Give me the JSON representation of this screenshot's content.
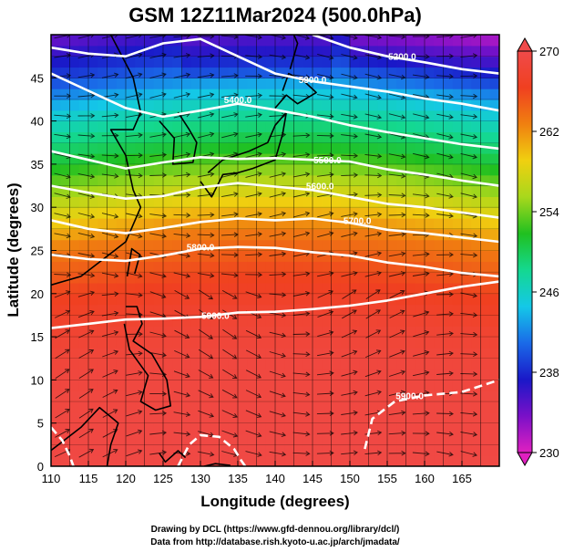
{
  "chart_data": {
    "type": "heatmap",
    "title": "GSM 12Z11Mar2024 (500.0hPa)",
    "xlabel": "Longitude (degrees)",
    "ylabel": "Latitude  (degrees)",
    "xlim": [
      110,
      170
    ],
    "ylim": [
      0,
      50
    ],
    "x_ticks": [
      110,
      115,
      120,
      125,
      130,
      135,
      140,
      145,
      150,
      155,
      160,
      165
    ],
    "y_ticks": [
      0,
      5,
      10,
      15,
      20,
      25,
      30,
      35,
      40,
      45
    ],
    "colorbar": {
      "min": 230,
      "max": 270,
      "tick_labels": [
        "230",
        "238",
        "246",
        "254",
        "262",
        "270"
      ],
      "tick_values": [
        230,
        238,
        246,
        254,
        262,
        270
      ],
      "colors": [
        "#e020c0",
        "#7a10c8",
        "#1a18c8",
        "#1a6ae8",
        "#14c8e8",
        "#14d890",
        "#20c020",
        "#a8d81c",
        "#f0d010",
        "#f08010",
        "#f04020",
        "#f04a4a"
      ]
    },
    "temperature_field_lat_profile": [
      {
        "lat": 0,
        "value": 269.5
      },
      {
        "lat": 10,
        "value": 269
      },
      {
        "lat": 15,
        "value": 268
      },
      {
        "lat": 20,
        "value": 266
      },
      {
        "lat": 25,
        "value": 263
      },
      {
        "lat": 30,
        "value": 257
      },
      {
        "lat": 35,
        "value": 251
      },
      {
        "lat": 40,
        "value": 246
      },
      {
        "lat": 45,
        "value": 239
      },
      {
        "lat": 50,
        "value": 234
      }
    ],
    "height_contours": [
      {
        "label": "5200.0",
        "value": 5200,
        "path": [
          [
            145,
            50
          ],
          [
            150,
            48.5
          ],
          [
            155,
            47.5
          ],
          [
            160,
            46.8
          ],
          [
            165,
            46
          ],
          [
            170,
            45.5
          ]
        ]
      },
      {
        "label": "5300.0",
        "value": 5300,
        "path": [
          [
            110,
            48.5
          ],
          [
            115,
            47.8
          ],
          [
            120,
            47.5
          ],
          [
            125,
            49
          ],
          [
            130,
            49.5
          ],
          [
            135,
            47.5
          ],
          [
            140,
            45.5
          ],
          [
            145,
            44.6
          ],
          [
            150,
            44
          ],
          [
            155,
            43.4
          ],
          [
            160,
            42.6
          ],
          [
            165,
            42
          ],
          [
            170,
            41.2
          ]
        ]
      },
      {
        "label": "5400.0",
        "value": 5400,
        "path": [
          [
            110,
            45.5
          ],
          [
            115,
            43.5
          ],
          [
            120,
            41.5
          ],
          [
            125,
            40.5
          ],
          [
            130,
            41.2
          ],
          [
            135,
            42
          ],
          [
            140,
            41.3
          ],
          [
            145,
            40.5
          ],
          [
            150,
            39.5
          ],
          [
            155,
            38.7
          ],
          [
            160,
            38
          ],
          [
            165,
            37.3
          ],
          [
            170,
            36.8
          ]
        ]
      },
      {
        "label": "5500.0",
        "value": 5500,
        "path": [
          [
            110,
            36.5
          ],
          [
            115,
            35.5
          ],
          [
            120,
            34.5
          ],
          [
            125,
            35.2
          ],
          [
            130,
            35.8
          ],
          [
            135,
            35.6
          ],
          [
            140,
            35.7
          ],
          [
            145,
            35.5
          ],
          [
            150,
            35.3
          ],
          [
            155,
            34.4
          ],
          [
            160,
            33.8
          ],
          [
            165,
            33.1
          ],
          [
            170,
            32.5
          ]
        ]
      },
      {
        "label": "5600.0",
        "value": 5600,
        "path": [
          [
            110,
            32.5
          ],
          [
            115,
            31.7
          ],
          [
            120,
            31
          ],
          [
            125,
            31.3
          ],
          [
            130,
            32.3
          ],
          [
            135,
            32.8
          ],
          [
            140,
            32.4
          ],
          [
            145,
            32
          ],
          [
            150,
            31.2
          ],
          [
            155,
            30.4
          ],
          [
            160,
            30
          ],
          [
            165,
            29.4
          ],
          [
            170,
            28.8
          ]
        ]
      },
      {
        "label": "5700.0",
        "value": 5700,
        "path": [
          [
            110,
            28.5
          ],
          [
            115,
            27.5
          ],
          [
            120,
            27
          ],
          [
            125,
            27.6
          ],
          [
            130,
            28.3
          ],
          [
            135,
            28.7
          ],
          [
            140,
            28.5
          ],
          [
            145,
            28.7
          ],
          [
            150,
            28.2
          ],
          [
            155,
            27.4
          ],
          [
            160,
            27
          ],
          [
            165,
            26.5
          ],
          [
            170,
            26
          ]
        ]
      },
      {
        "label": "5800.0",
        "value": 5800,
        "path": [
          [
            110,
            24.5
          ],
          [
            115,
            24
          ],
          [
            120,
            23.8
          ],
          [
            125,
            24.4
          ],
          [
            130,
            25.2
          ],
          [
            135,
            25.4
          ],
          [
            140,
            25.3
          ],
          [
            145,
            24.8
          ],
          [
            150,
            24.4
          ],
          [
            155,
            23.6
          ],
          [
            160,
            23.1
          ],
          [
            165,
            22.4
          ],
          [
            170,
            22
          ]
        ]
      },
      {
        "label": "5900.0",
        "value": 5900,
        "path": [
          [
            110,
            16
          ],
          [
            115,
            16.5
          ],
          [
            120,
            17
          ],
          [
            125,
            17.1
          ],
          [
            130,
            17.3
          ],
          [
            135,
            17.8
          ],
          [
            140,
            17.9
          ],
          [
            145,
            18.2
          ],
          [
            150,
            18.6
          ],
          [
            155,
            19.2
          ],
          [
            160,
            20
          ],
          [
            165,
            20.8
          ],
          [
            170,
            21.4
          ]
        ]
      },
      {
        "label": "5900.0",
        "value": 5900,
        "path": [
          [
            152,
            2
          ],
          [
            153,
            5.5
          ],
          [
            156,
            7.5
          ],
          [
            160,
            8.2
          ],
          [
            165,
            8.6
          ],
          [
            170,
            10
          ]
        ]
      },
      {
        "label": "",
        "value": 5900,
        "path": [
          [
            110,
            4.5
          ],
          [
            111.5,
            3
          ],
          [
            112.5,
            1.2
          ],
          [
            113,
            0
          ]
        ]
      },
      {
        "label": "",
        "value": 5900,
        "path": [
          [
            127,
            0
          ],
          [
            128.5,
            2.5
          ],
          [
            130,
            3.6
          ],
          [
            132.5,
            3.4
          ],
          [
            134.5,
            2
          ],
          [
            135.5,
            0.6
          ],
          [
            136,
            0
          ]
        ]
      }
    ],
    "contour_label_positions": [
      {
        "text": "5200.0",
        "lon": 157,
        "lat": 47.5
      },
      {
        "text": "5300.0",
        "lon": 145,
        "lat": 44.8
      },
      {
        "text": "5400.0",
        "lon": 135,
        "lat": 42.5
      },
      {
        "text": "5500.0",
        "lon": 147,
        "lat": 35.5
      },
      {
        "text": "5600.0",
        "lon": 146,
        "lat": 32.5
      },
      {
        "text": "5700.0",
        "lon": 151,
        "lat": 28.5
      },
      {
        "text": "5800.0",
        "lon": 130,
        "lat": 25.4
      },
      {
        "text": "5900.0",
        "lon": 132,
        "lat": 17.5
      },
      {
        "text": "5900.0",
        "lon": 158,
        "lat": 8.2
      }
    ]
  },
  "credits": {
    "line1": "Drawing by DCL (https://www.gfd-dennou.org/library/dcl/)",
    "line2": "Data from http://database.rish.kyoto-u.ac.jp/arch/jmadata/"
  }
}
